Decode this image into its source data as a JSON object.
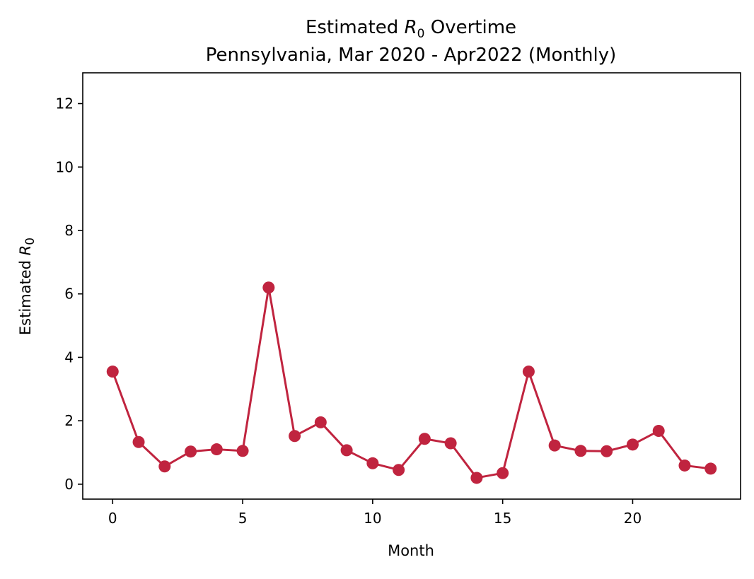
{
  "chart_data": {
    "type": "line",
    "title": {
      "line1_prefix": "Estimated ",
      "symbol": "R",
      "symbol_sub": "0",
      "line1_suffix": " Overtime",
      "line2": "Pennsylvania, Mar 2020 - Apr2022 (Monthly)"
    },
    "xlabel": "Month",
    "ylabel": {
      "prefix": "Estimated ",
      "symbol": "R",
      "symbol_sub": "0"
    },
    "xlim": [
      -1.15,
      24.15
    ],
    "ylim": [
      -0.47,
      12.97
    ],
    "xticks": [
      0,
      5,
      10,
      15,
      20
    ],
    "yticks": [
      0,
      2,
      4,
      6,
      8,
      10,
      12
    ],
    "grid": false,
    "marker": "circle",
    "color": "#c0243f",
    "series": [
      {
        "x": [
          0,
          1,
          2,
          3,
          4,
          5,
          6,
          7,
          8,
          9,
          10,
          11,
          12,
          13,
          14,
          15,
          16,
          17,
          18,
          19,
          20,
          21,
          22,
          23
        ],
        "values": [
          3.55,
          1.33,
          0.56,
          1.03,
          1.1,
          1.05,
          6.2,
          1.52,
          1.95,
          1.07,
          0.66,
          0.45,
          1.43,
          1.29,
          0.2,
          0.35,
          3.55,
          1.22,
          1.05,
          1.04,
          1.25,
          1.68,
          0.59,
          0.49
        ]
      }
    ]
  }
}
